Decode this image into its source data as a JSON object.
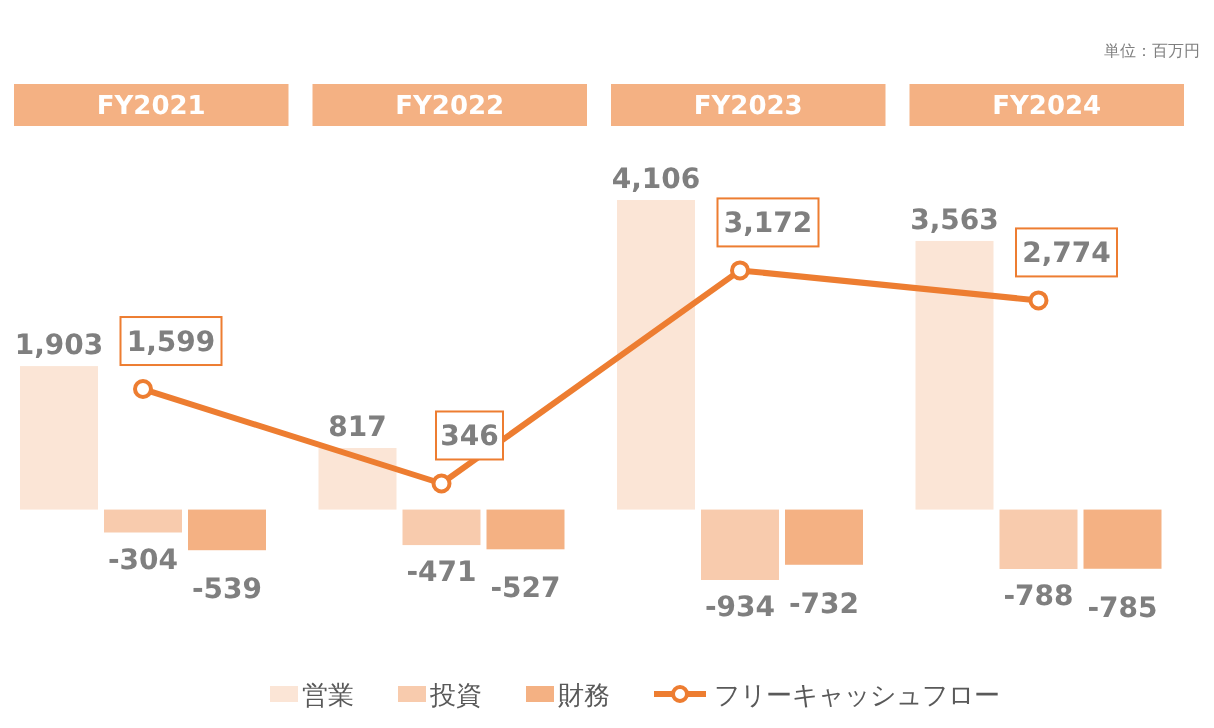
{
  "chart_data": {
    "type": "bar",
    "categories": [
      "FY2021",
      "FY2022",
      "FY2023",
      "FY2024"
    ],
    "annotations": [
      "単位：百万円"
    ],
    "legend": "bottom",
    "series": [
      {
        "name": "営業",
        "color": "#fbe5d6",
        "values": [
          1903,
          817,
          4106,
          3563
        ],
        "value_labels": [
          "1,903",
          "817",
          "4,106",
          "3,563"
        ]
      },
      {
        "name": "投資",
        "color": "#f8cbad",
        "values": [
          -304,
          -471,
          -934,
          -788
        ],
        "value_labels": [
          "-304",
          "-471",
          "-934",
          "-788"
        ]
      },
      {
        "name": "財務",
        "color": "#f4b183",
        "values": [
          -539,
          -527,
          -732,
          -785
        ],
        "value_labels": [
          "-539",
          "-527",
          "-732",
          "-785"
        ]
      },
      {
        "name": "フリーキャッシュフロー",
        "type": "line",
        "color": "#ed7d31",
        "marker": "circle",
        "line_style": "solid",
        "values": [
          1599,
          346,
          3172,
          2774
        ],
        "value_labels": [
          "1,599",
          "346",
          "3,172",
          "2,774"
        ]
      }
    ]
  }
}
